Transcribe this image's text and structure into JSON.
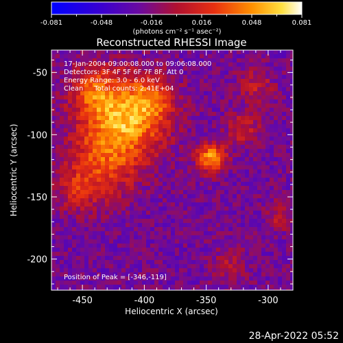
{
  "colorbar": {
    "ticks": [
      "-0.081",
      "-0.048",
      "-0.016",
      "0.016",
      "0.048",
      "0.081"
    ],
    "unit_label": "(photons cm⁻² s⁻¹ asec⁻²)"
  },
  "image_title": "Reconstructed RHESSI Image",
  "info": {
    "time_range": "17-Jan-2004 09:00:08.000 to 09:06:08.000",
    "detectors": "Detectors: 3F 4F 5F 6F 7F 8F, Att 0",
    "energy_range": "Energy Range: 3.0 - 6.0 keV",
    "method_counts": "Clean     Total counts: 2.41E+04",
    "peak_position": "Position of Peak = [-346,-119]"
  },
  "footer_timestamp": "28-Apr-2022 05:52",
  "chart_data": {
    "type": "heatmap",
    "title": "Reconstructed RHESSI Image",
    "xlabel": "Heliocentric X (arcsec)",
    "ylabel": "Heliocentric Y (arcsec)",
    "xlim": [
      -475,
      -280
    ],
    "ylim": [
      -225,
      -32
    ],
    "x_ticks": [
      -450,
      -400,
      -350,
      -300
    ],
    "y_ticks": [
      -50,
      -100,
      -150,
      -200
    ],
    "x_tick_labels": [
      "-450",
      "-400",
      "-350",
      "-300"
    ],
    "y_tick_labels": [
      "-50",
      "-100",
      "-150",
      "-200"
    ],
    "colorbar_range": [
      -0.081,
      0.081
    ],
    "colormap": "rainbow/hot (blue-purple-red-orange-yellow-white)",
    "peak": [
      -346,
      -119
    ],
    "sources": [
      {
        "x": -416,
        "y": -90,
        "sigma": 22,
        "amp": 0.07
      },
      {
        "x": -440,
        "y": -65,
        "sigma": 15,
        "amp": 0.045
      },
      {
        "x": -395,
        "y": -72,
        "sigma": 14,
        "amp": 0.04
      },
      {
        "x": -346,
        "y": -119,
        "sigma": 8,
        "amp": 0.075
      },
      {
        "x": -435,
        "y": -125,
        "sigma": 20,
        "amp": 0.04
      },
      {
        "x": -455,
        "y": -145,
        "sigma": 12,
        "amp": 0.025
      },
      {
        "x": -320,
        "y": -95,
        "sigma": 10,
        "amp": 0.03
      },
      {
        "x": -310,
        "y": -60,
        "sigma": 10,
        "amp": 0.028
      },
      {
        "x": -290,
        "y": -165,
        "sigma": 8,
        "amp": 0.025
      },
      {
        "x": -330,
        "y": -205,
        "sigma": 10,
        "amp": 0.022
      }
    ]
  }
}
